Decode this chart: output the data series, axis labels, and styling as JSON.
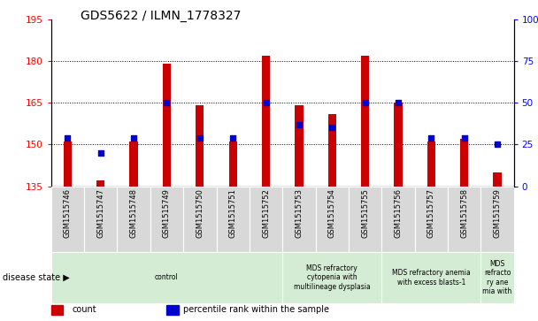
{
  "title": "GDS5622 / ILMN_1778327",
  "samples": [
    "GSM1515746",
    "GSM1515747",
    "GSM1515748",
    "GSM1515749",
    "GSM1515750",
    "GSM1515751",
    "GSM1515752",
    "GSM1515753",
    "GSM1515754",
    "GSM1515755",
    "GSM1515756",
    "GSM1515757",
    "GSM1515758",
    "GSM1515759"
  ],
  "counts": [
    151,
    137,
    151,
    179,
    164,
    151,
    182,
    164,
    161,
    182,
    165,
    151,
    152,
    140
  ],
  "percentile_ranks": [
    29,
    20,
    29,
    50,
    29,
    29,
    50,
    37,
    35,
    50,
    50,
    29,
    29,
    25
  ],
  "ylim_left": [
    135,
    195
  ],
  "ylim_right": [
    0,
    100
  ],
  "yticks_left": [
    135,
    150,
    165,
    180,
    195
  ],
  "yticks_right": [
    0,
    25,
    50,
    75,
    100
  ],
  "bar_color": "#cc0000",
  "dot_color": "#0000cc",
  "disease_groups": [
    {
      "label": "control",
      "start": 0,
      "end": 7,
      "color": "#d4ecd4"
    },
    {
      "label": "MDS refractory\ncytopenia with\nmultilineage dysplasia",
      "start": 7,
      "end": 10,
      "color": "#d4ecd4"
    },
    {
      "label": "MDS refractory anemia\nwith excess blasts-1",
      "start": 10,
      "end": 13,
      "color": "#d4ecd4"
    },
    {
      "label": "MDS\nrefracto\nry ane\nmia with",
      "start": 13,
      "end": 14,
      "color": "#d4ecd4"
    }
  ],
  "legend_count_label": "count",
  "legend_pct_label": "percentile rank within the sample",
  "disease_state_label": "disease state"
}
